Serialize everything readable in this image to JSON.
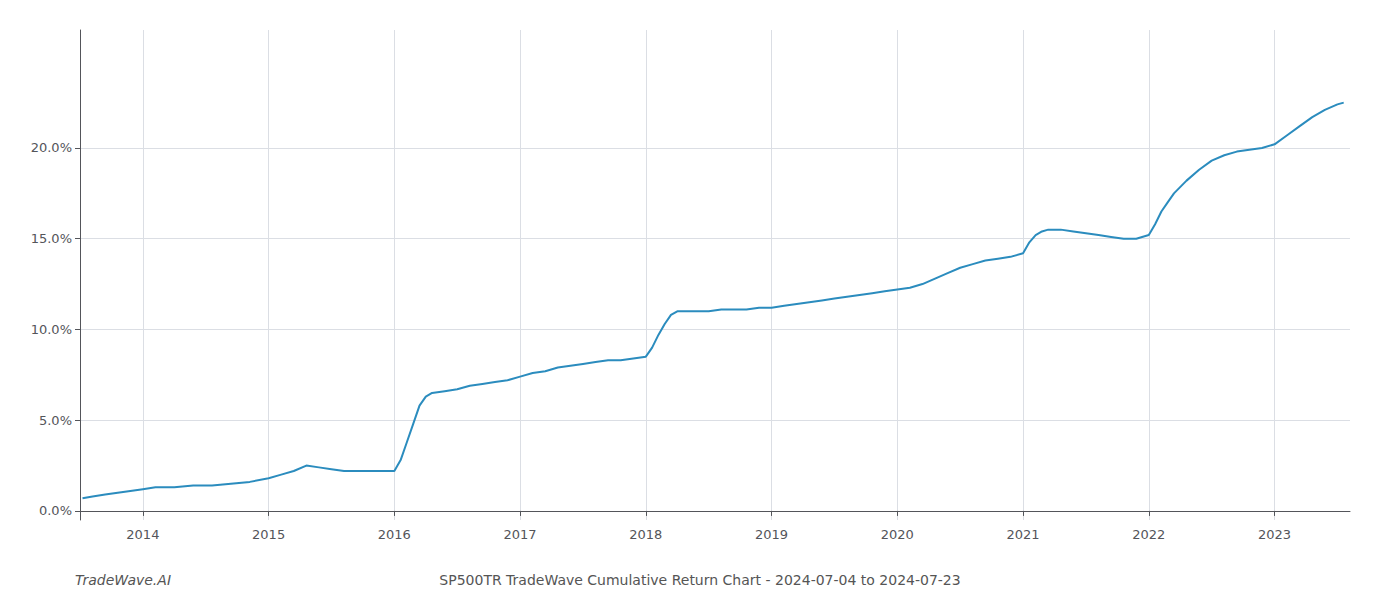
{
  "chart_data": {
    "type": "line",
    "title": "SP500TR TradeWave Cumulative Return Chart - 2024-07-04 to 2024-07-23",
    "annotations": [
      "TradeWave.AI"
    ],
    "color": "#2b8cbe",
    "grid": true,
    "x": [
      2013.52,
      2013.6,
      2013.7,
      2013.8,
      2013.9,
      2014.0,
      2014.1,
      2014.25,
      2014.4,
      2014.55,
      2014.7,
      2014.85,
      2015.0,
      2015.1,
      2015.2,
      2015.3,
      2015.4,
      2015.5,
      2015.6,
      2015.7,
      2015.8,
      2015.9,
      2016.0,
      2016.05,
      2016.1,
      2016.15,
      2016.2,
      2016.25,
      2016.3,
      2016.4,
      2016.5,
      2016.6,
      2016.7,
      2016.8,
      2016.9,
      2017.0,
      2017.1,
      2017.2,
      2017.3,
      2017.4,
      2017.5,
      2017.6,
      2017.7,
      2017.8,
      2017.9,
      2018.0,
      2018.05,
      2018.1,
      2018.15,
      2018.2,
      2018.25,
      2018.3,
      2018.4,
      2018.5,
      2018.6,
      2018.7,
      2018.8,
      2018.9,
      2019.0,
      2019.1,
      2019.2,
      2019.3,
      2019.4,
      2019.5,
      2019.6,
      2019.7,
      2019.8,
      2019.9,
      2020.0,
      2020.1,
      2020.2,
      2020.3,
      2020.4,
      2020.5,
      2020.6,
      2020.7,
      2020.8,
      2020.9,
      2021.0,
      2021.05,
      2021.1,
      2021.15,
      2021.2,
      2021.3,
      2021.4,
      2021.5,
      2021.6,
      2021.7,
      2021.8,
      2021.9,
      2022.0,
      2022.05,
      2022.1,
      2022.15,
      2022.2,
      2022.3,
      2022.4,
      2022.5,
      2022.6,
      2022.7,
      2022.8,
      2022.9,
      2023.0,
      2023.1,
      2023.2,
      2023.3,
      2023.4,
      2023.5,
      2023.55
    ],
    "values": [
      0.007,
      0.008,
      0.009,
      0.01,
      0.011,
      0.012,
      0.013,
      0.013,
      0.014,
      0.014,
      0.015,
      0.016,
      0.018,
      0.02,
      0.022,
      0.025,
      0.024,
      0.023,
      0.022,
      0.022,
      0.022,
      0.022,
      0.022,
      0.028,
      0.038,
      0.048,
      0.058,
      0.063,
      0.065,
      0.066,
      0.067,
      0.069,
      0.07,
      0.071,
      0.072,
      0.074,
      0.076,
      0.077,
      0.079,
      0.08,
      0.081,
      0.082,
      0.083,
      0.083,
      0.084,
      0.085,
      0.09,
      0.097,
      0.103,
      0.108,
      0.11,
      0.11,
      0.11,
      0.11,
      0.111,
      0.111,
      0.111,
      0.112,
      0.112,
      0.113,
      0.114,
      0.115,
      0.116,
      0.117,
      0.118,
      0.119,
      0.12,
      0.121,
      0.122,
      0.123,
      0.125,
      0.128,
      0.131,
      0.134,
      0.136,
      0.138,
      0.139,
      0.14,
      0.142,
      0.148,
      0.152,
      0.154,
      0.155,
      0.155,
      0.154,
      0.153,
      0.152,
      0.151,
      0.15,
      0.15,
      0.152,
      0.158,
      0.165,
      0.17,
      0.175,
      0.182,
      0.188,
      0.193,
      0.196,
      0.198,
      0.199,
      0.2,
      0.202,
      0.207,
      0.212,
      0.217,
      0.221,
      0.224,
      0.225
    ],
    "xlim": [
      2013.5,
      2023.6
    ],
    "xticks": [
      2014,
      2015,
      2016,
      2017,
      2018,
      2019,
      2020,
      2021,
      2022,
      2023
    ],
    "ylim": [
      -0.005,
      0.265
    ],
    "yticks": [
      {
        "value": 0.0,
        "label": "0.0%"
      },
      {
        "value": 0.05,
        "label": "5.0%"
      },
      {
        "value": 0.1,
        "label": "10.0%"
      },
      {
        "value": 0.15,
        "label": "15.0%"
      },
      {
        "value": 0.2,
        "label": "20.0%"
      }
    ]
  }
}
